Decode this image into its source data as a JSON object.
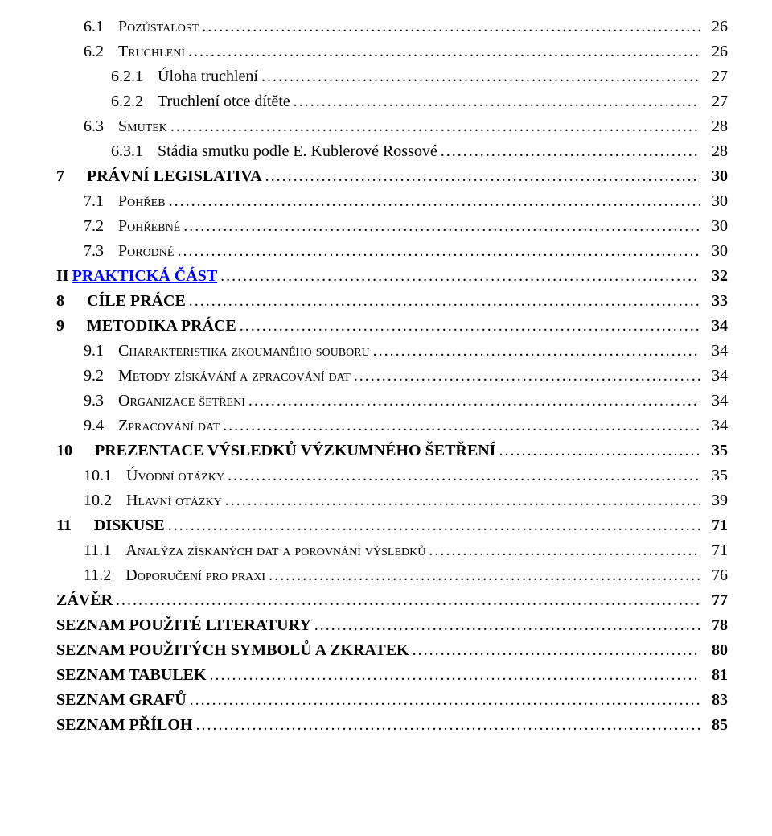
{
  "toc": {
    "entries": [
      {
        "id": "6-1",
        "indent": "lvl-h1",
        "bold": false,
        "smallcaps": true,
        "number": "6.1",
        "title": "Pozůstalost",
        "page": "26"
      },
      {
        "id": "6-2",
        "indent": "lvl-h1",
        "bold": false,
        "smallcaps": true,
        "number": "6.2",
        "title": "Truchlení",
        "page": "26"
      },
      {
        "id": "6-2-1",
        "indent": "lvl-h2",
        "bold": false,
        "smallcaps": false,
        "number": "6.2.1",
        "title": "Úloha truchlení",
        "page": "27"
      },
      {
        "id": "6-2-2",
        "indent": "lvl-h2",
        "bold": false,
        "smallcaps": false,
        "number": "6.2.2",
        "title": "Truchlení otce dítěte",
        "page": "27"
      },
      {
        "id": "6-3",
        "indent": "lvl-h1",
        "bold": false,
        "smallcaps": true,
        "number": "6.3",
        "title": "Smutek",
        "page": "28"
      },
      {
        "id": "6-3-1",
        "indent": "lvl-h2",
        "bold": false,
        "smallcaps": false,
        "number": "6.3.1",
        "title": "Stádia smutku podle E. Kublerové Rossové",
        "page": "28"
      },
      {
        "id": "7",
        "indent": "lvl-top",
        "bold": true,
        "smallcaps": false,
        "number": "7",
        "title": "PRÁVNÍ LEGISLATIVA",
        "page": "30"
      },
      {
        "id": "7-1",
        "indent": "lvl-h1",
        "bold": false,
        "smallcaps": true,
        "number": "7.1",
        "title": "Pohřeb",
        "page": "30"
      },
      {
        "id": "7-2",
        "indent": "lvl-h1",
        "bold": false,
        "smallcaps": true,
        "number": "7.2",
        "title": "Pohřebné",
        "page": "30"
      },
      {
        "id": "7-3",
        "indent": "lvl-h1",
        "bold": false,
        "smallcaps": true,
        "number": "7.3",
        "title": "Porodné",
        "page": "30"
      },
      {
        "id": "ii",
        "indent": "lvl-top",
        "bold": true,
        "smallcaps": false,
        "number": "II",
        "title": "PRAKTICKÁ ČÁST",
        "page": "32",
        "link": true,
        "tightnum": true
      },
      {
        "id": "8",
        "indent": "lvl-top",
        "bold": true,
        "smallcaps": false,
        "number": "8",
        "title": "CÍLE PRÁCE",
        "page": "33"
      },
      {
        "id": "9",
        "indent": "lvl-top",
        "bold": true,
        "smallcaps": false,
        "number": "9",
        "title": "METODIKA PRÁCE",
        "page": "34"
      },
      {
        "id": "9-1",
        "indent": "lvl-h1",
        "bold": false,
        "smallcaps": true,
        "number": "9.1",
        "title": "Charakteristika zkoumaného souboru",
        "page": "34"
      },
      {
        "id": "9-2",
        "indent": "lvl-h1",
        "bold": false,
        "smallcaps": true,
        "number": "9.2",
        "title": "Metody získávání a zpracování dat",
        "page": "34"
      },
      {
        "id": "9-3",
        "indent": "lvl-h1",
        "bold": false,
        "smallcaps": true,
        "number": "9.3",
        "title": "Organizace šetření",
        "page": "34"
      },
      {
        "id": "9-4",
        "indent": "lvl-h1",
        "bold": false,
        "smallcaps": true,
        "number": "9.4",
        "title": "Zpracování dat",
        "page": "34"
      },
      {
        "id": "10",
        "indent": "lvl-top",
        "bold": true,
        "smallcaps": false,
        "number": "10",
        "title": "PREZENTACE VÝSLEDKŮ VÝZKUMNÉHO ŠETŘENÍ",
        "page": "35"
      },
      {
        "id": "10-1",
        "indent": "lvl-h1",
        "bold": false,
        "smallcaps": true,
        "number": "10.1",
        "title": "Úvodní otázky",
        "page": "35"
      },
      {
        "id": "10-2",
        "indent": "lvl-h1",
        "bold": false,
        "smallcaps": true,
        "number": "10.2",
        "title": "Hlavní otázky",
        "page": "39"
      },
      {
        "id": "11",
        "indent": "lvl-top",
        "bold": true,
        "smallcaps": false,
        "number": "11",
        "title": "DISKUSE",
        "page": "71"
      },
      {
        "id": "11-1",
        "indent": "lvl-h1",
        "bold": false,
        "smallcaps": true,
        "number": "11.1",
        "title": "Analýza získaných dat a porovnání výsledků",
        "page": "71"
      },
      {
        "id": "11-2",
        "indent": "lvl-h1",
        "bold": false,
        "smallcaps": true,
        "number": "11.2",
        "title": "Doporučení pro praxi",
        "page": "76"
      },
      {
        "id": "zaver",
        "indent": "lvl-back",
        "bold": true,
        "smallcaps": false,
        "number": "",
        "title": "ZÁVĚR",
        "page": "77"
      },
      {
        "id": "lit",
        "indent": "lvl-back",
        "bold": true,
        "smallcaps": false,
        "number": "",
        "title": "SEZNAM POUŽITÉ LITERATURY",
        "page": "78"
      },
      {
        "id": "sym",
        "indent": "lvl-back",
        "bold": true,
        "smallcaps": false,
        "number": "",
        "title": "SEZNAM POUŽITÝCH SYMBOLŮ A ZKRATEK",
        "page": "80"
      },
      {
        "id": "tab",
        "indent": "lvl-back",
        "bold": true,
        "smallcaps": false,
        "number": "",
        "title": "SEZNAM TABULEK",
        "page": "81"
      },
      {
        "id": "graf",
        "indent": "lvl-back",
        "bold": true,
        "smallcaps": false,
        "number": "",
        "title": "SEZNAM GRAFŮ",
        "page": "83"
      },
      {
        "id": "pril",
        "indent": "lvl-back",
        "bold": true,
        "smallcaps": false,
        "number": "",
        "title": "SEZNAM PŘÍLOH",
        "page": "85"
      }
    ]
  }
}
